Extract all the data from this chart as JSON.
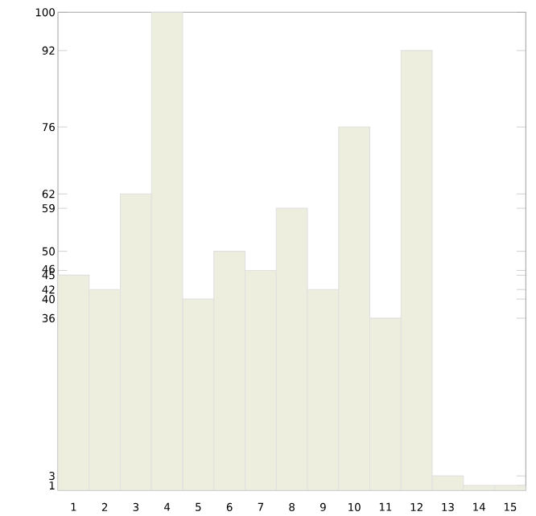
{
  "chart_data": {
    "type": "bar",
    "categories": [
      "1",
      "2",
      "3",
      "4",
      "5",
      "6",
      "7",
      "8",
      "9",
      "10",
      "11",
      "12",
      "13",
      "14",
      "15"
    ],
    "values": [
      45,
      42,
      62,
      100,
      40,
      50,
      46,
      59,
      42,
      76,
      36,
      92,
      3,
      1,
      1
    ],
    "color": "#eeeedf",
    "ylim": [
      0,
      100
    ],
    "yticks": [
      1,
      3,
      36,
      40,
      42,
      45,
      46,
      50,
      59,
      62,
      76,
      92,
      100
    ],
    "grid": false
  }
}
